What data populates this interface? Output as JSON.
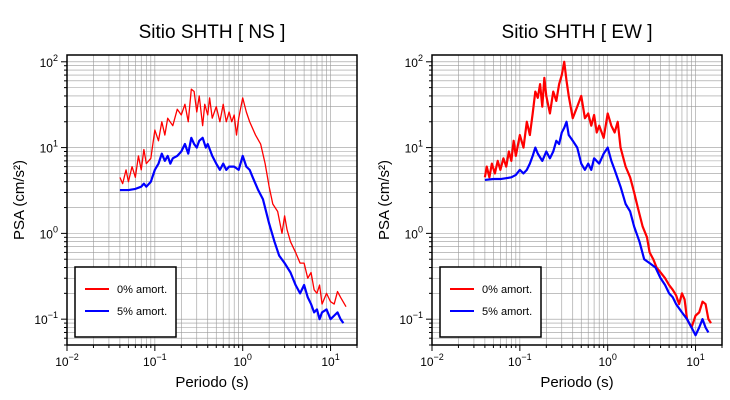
{
  "chart_data": [
    {
      "type": "line",
      "title": "Sitio SHTH [ NS ]",
      "xlabel": "Periodo (s)",
      "ylabel": "PSA (cm/s²)",
      "xscale": "log",
      "yscale": "log",
      "xlim": [
        0.01,
        20
      ],
      "ylim": [
        0.05,
        120
      ],
      "grid": true,
      "legend_position": "bottom-left",
      "x_ticks": [
        {
          "base": "10",
          "exp": "−2"
        },
        {
          "base": "10",
          "exp": "−1"
        },
        {
          "base": "10",
          "exp": "0"
        },
        {
          "base": "10",
          "exp": "1"
        }
      ],
      "y_ticks": [
        {
          "base": "10",
          "exp": "−1"
        },
        {
          "base": "10",
          "exp": "0"
        },
        {
          "base": "10",
          "exp": "1"
        },
        {
          "base": "10",
          "exp": "2"
        }
      ],
      "series": [
        {
          "name": "0% amort.",
          "color": "#ff0000",
          "points": [
            [
              0.04,
              4.5
            ],
            [
              0.043,
              3.8
            ],
            [
              0.047,
              5.5
            ],
            [
              0.05,
              4.0
            ],
            [
              0.055,
              6.0
            ],
            [
              0.06,
              4.5
            ],
            [
              0.065,
              8.0
            ],
            [
              0.07,
              5.5
            ],
            [
              0.075,
              9.5
            ],
            [
              0.08,
              6.5
            ],
            [
              0.09,
              7.5
            ],
            [
              0.1,
              16
            ],
            [
              0.11,
              12
            ],
            [
              0.12,
              20
            ],
            [
              0.13,
              14
            ],
            [
              0.14,
              22
            ],
            [
              0.16,
              18
            ],
            [
              0.18,
              28
            ],
            [
              0.2,
              24
            ],
            [
              0.22,
              32
            ],
            [
              0.24,
              20
            ],
            [
              0.26,
              48
            ],
            [
              0.28,
              45
            ],
            [
              0.3,
              26
            ],
            [
              0.32,
              40
            ],
            [
              0.35,
              18
            ],
            [
              0.37,
              32
            ],
            [
              0.4,
              24
            ],
            [
              0.42,
              38
            ],
            [
              0.45,
              22
            ],
            [
              0.5,
              30
            ],
            [
              0.55,
              20
            ],
            [
              0.6,
              32
            ],
            [
              0.65,
              20
            ],
            [
              0.7,
              26
            ],
            [
              0.75,
              20
            ],
            [
              0.8,
              24
            ],
            [
              0.85,
              14
            ],
            [
              0.9,
              22
            ],
            [
              1.0,
              38
            ],
            [
              1.1,
              26
            ],
            [
              1.2,
              20
            ],
            [
              1.4,
              14
            ],
            [
              1.6,
              11
            ],
            [
              1.8,
              6.5
            ],
            [
              2.0,
              3.5
            ],
            [
              2.2,
              2.2
            ],
            [
              2.5,
              1.8
            ],
            [
              2.8,
              1.0
            ],
            [
              3.0,
              1.6
            ],
            [
              3.2,
              1.1
            ],
            [
              3.5,
              0.8
            ],
            [
              4.0,
              0.6
            ],
            [
              4.5,
              0.45
            ],
            [
              5.0,
              0.45
            ],
            [
              5.5,
              0.3
            ],
            [
              6.0,
              0.35
            ],
            [
              6.5,
              0.22
            ],
            [
              7.0,
              0.2
            ],
            [
              7.5,
              0.25
            ],
            [
              8.0,
              0.15
            ],
            [
              9.0,
              0.2
            ],
            [
              10,
              0.16
            ],
            [
              11,
              0.15
            ],
            [
              12,
              0.21
            ],
            [
              13,
              0.18
            ],
            [
              15,
              0.14
            ]
          ]
        },
        {
          "name": "5% amort.",
          "color": "#0000ff",
          "points": [
            [
              0.04,
              3.2
            ],
            [
              0.05,
              3.2
            ],
            [
              0.06,
              3.3
            ],
            [
              0.07,
              3.5
            ],
            [
              0.075,
              3.8
            ],
            [
              0.08,
              3.5
            ],
            [
              0.09,
              4.0
            ],
            [
              0.1,
              5.5
            ],
            [
              0.11,
              6.5
            ],
            [
              0.12,
              8.5
            ],
            [
              0.13,
              7.0
            ],
            [
              0.14,
              8.0
            ],
            [
              0.15,
              6.5
            ],
            [
              0.16,
              7.5
            ],
            [
              0.18,
              8.0
            ],
            [
              0.2,
              9.0
            ],
            [
              0.22,
              11
            ],
            [
              0.24,
              8.5
            ],
            [
              0.26,
              13
            ],
            [
              0.28,
              11
            ],
            [
              0.3,
              10
            ],
            [
              0.32,
              12
            ],
            [
              0.35,
              13
            ],
            [
              0.38,
              10
            ],
            [
              0.4,
              11
            ],
            [
              0.45,
              8
            ],
            [
              0.5,
              6.5
            ],
            [
              0.55,
              5.5
            ],
            [
              0.6,
              6.5
            ],
            [
              0.65,
              5.5
            ],
            [
              0.7,
              6.0
            ],
            [
              0.8,
              6.0
            ],
            [
              0.9,
              5.5
            ],
            [
              1.0,
              8.0
            ],
            [
              1.1,
              6.0
            ],
            [
              1.2,
              5.5
            ],
            [
              1.3,
              4.5
            ],
            [
              1.5,
              3.2
            ],
            [
              1.7,
              2.5
            ],
            [
              2.0,
              1.3
            ],
            [
              2.3,
              0.8
            ],
            [
              2.6,
              0.55
            ],
            [
              3.0,
              0.45
            ],
            [
              3.5,
              0.35
            ],
            [
              4.0,
              0.25
            ],
            [
              4.5,
              0.2
            ],
            [
              5.0,
              0.25
            ],
            [
              5.5,
              0.18
            ],
            [
              6.0,
              0.15
            ],
            [
              6.5,
              0.12
            ],
            [
              7.0,
              0.13
            ],
            [
              7.5,
              0.1
            ],
            [
              8.0,
              0.12
            ],
            [
              9.0,
              0.13
            ],
            [
              10,
              0.1
            ],
            [
              11,
              0.11
            ],
            [
              12,
              0.12
            ],
            [
              13,
              0.1
            ],
            [
              14,
              0.09
            ]
          ]
        }
      ]
    },
    {
      "type": "line",
      "title": "Sitio SHTH [ EW ]",
      "xlabel": "Periodo (s)",
      "ylabel": "PSA (cm/s²)",
      "xscale": "log",
      "yscale": "log",
      "xlim": [
        0.01,
        20
      ],
      "ylim": [
        0.05,
        120
      ],
      "grid": true,
      "legend_position": "bottom-left",
      "x_ticks": [
        {
          "base": "10",
          "exp": "−2"
        },
        {
          "base": "10",
          "exp": "−1"
        },
        {
          "base": "10",
          "exp": "0"
        },
        {
          "base": "10",
          "exp": "1"
        }
      ],
      "y_ticks": [
        {
          "base": "10",
          "exp": "−1"
        },
        {
          "base": "10",
          "exp": "0"
        },
        {
          "base": "10",
          "exp": "1"
        },
        {
          "base": "10",
          "exp": "2"
        }
      ],
      "series": [
        {
          "name": "0% amort.",
          "color": "#ff0000",
          "points": [
            [
              0.04,
              4.5
            ],
            [
              0.042,
              6.0
            ],
            [
              0.045,
              4.5
            ],
            [
              0.048,
              6.5
            ],
            [
              0.052,
              5.0
            ],
            [
              0.056,
              7.0
            ],
            [
              0.06,
              5.5
            ],
            [
              0.065,
              7.5
            ],
            [
              0.07,
              6.0
            ],
            [
              0.075,
              9.0
            ],
            [
              0.08,
              7.0
            ],
            [
              0.085,
              12
            ],
            [
              0.09,
              8.0
            ],
            [
              0.1,
              14
            ],
            [
              0.11,
              10
            ],
            [
              0.12,
              20
            ],
            [
              0.13,
              14
            ],
            [
              0.14,
              25
            ],
            [
              0.15,
              45
            ],
            [
              0.16,
              38
            ],
            [
              0.17,
              55
            ],
            [
              0.18,
              30
            ],
            [
              0.19,
              65
            ],
            [
              0.2,
              40
            ],
            [
              0.22,
              25
            ],
            [
              0.24,
              45
            ],
            [
              0.26,
              35
            ],
            [
              0.28,
              55
            ],
            [
              0.3,
              70
            ],
            [
              0.32,
              100
            ],
            [
              0.34,
              60
            ],
            [
              0.36,
              40
            ],
            [
              0.4,
              22
            ],
            [
              0.45,
              30
            ],
            [
              0.5,
              40
            ],
            [
              0.55,
              22
            ],
            [
              0.6,
              25
            ],
            [
              0.65,
              18
            ],
            [
              0.7,
              24
            ],
            [
              0.75,
              15
            ],
            [
              0.8,
              18
            ],
            [
              0.9,
              13
            ],
            [
              1.0,
              25
            ],
            [
              1.1,
              18
            ],
            [
              1.2,
              15
            ],
            [
              1.3,
              20
            ],
            [
              1.4,
              10
            ],
            [
              1.6,
              6.0
            ],
            [
              1.8,
              4.5
            ],
            [
              2.0,
              3.0
            ],
            [
              2.2,
              2.0
            ],
            [
              2.5,
              1.2
            ],
            [
              2.8,
              0.9
            ],
            [
              3.0,
              0.6
            ],
            [
              3.3,
              0.5
            ],
            [
              3.6,
              0.4
            ],
            [
              4.0,
              0.35
            ],
            [
              4.5,
              0.3
            ],
            [
              5.0,
              0.25
            ],
            [
              5.5,
              0.22
            ],
            [
              6.0,
              0.19
            ],
            [
              6.5,
              0.15
            ],
            [
              7.0,
              0.2
            ],
            [
              7.5,
              0.17
            ],
            [
              8.0,
              0.1
            ],
            [
              9.0,
              0.08
            ],
            [
              10,
              0.11
            ],
            [
              11,
              0.12
            ],
            [
              12,
              0.16
            ],
            [
              13,
              0.15
            ],
            [
              14,
              0.1
            ],
            [
              15,
              0.09
            ]
          ]
        },
        {
          "name": "5% amort.",
          "color": "#0000ff",
          "points": [
            [
              0.04,
              4.2
            ],
            [
              0.05,
              4.3
            ],
            [
              0.06,
              4.3
            ],
            [
              0.07,
              4.4
            ],
            [
              0.08,
              4.5
            ],
            [
              0.09,
              4.8
            ],
            [
              0.1,
              5.5
            ],
            [
              0.11,
              5.0
            ],
            [
              0.12,
              5.5
            ],
            [
              0.13,
              6.5
            ],
            [
              0.14,
              8.0
            ],
            [
              0.15,
              10
            ],
            [
              0.16,
              8.5
            ],
            [
              0.18,
              7.0
            ],
            [
              0.2,
              9.0
            ],
            [
              0.22,
              7.5
            ],
            [
              0.24,
              9.0
            ],
            [
              0.26,
              12
            ],
            [
              0.28,
              11
            ],
            [
              0.3,
              15
            ],
            [
              0.32,
              17
            ],
            [
              0.34,
              20
            ],
            [
              0.36,
              14
            ],
            [
              0.4,
              12
            ],
            [
              0.45,
              10
            ],
            [
              0.5,
              6.5
            ],
            [
              0.55,
              5.5
            ],
            [
              0.6,
              6.5
            ],
            [
              0.65,
              5.5
            ],
            [
              0.7,
              7.5
            ],
            [
              0.8,
              6.5
            ],
            [
              0.9,
              8.5
            ],
            [
              1.0,
              10
            ],
            [
              1.1,
              7.0
            ],
            [
              1.2,
              5.5
            ],
            [
              1.4,
              3.5
            ],
            [
              1.6,
              2.2
            ],
            [
              1.8,
              1.8
            ],
            [
              2.0,
              1.2
            ],
            [
              2.3,
              0.8
            ],
            [
              2.6,
              0.5
            ],
            [
              3.0,
              0.45
            ],
            [
              3.5,
              0.4
            ],
            [
              4.0,
              0.3
            ],
            [
              4.5,
              0.25
            ],
            [
              5.0,
              0.2
            ],
            [
              5.5,
              0.18
            ],
            [
              6.0,
              0.15
            ],
            [
              7.0,
              0.12
            ],
            [
              8.0,
              0.1
            ],
            [
              9.0,
              0.08
            ],
            [
              10,
              0.065
            ],
            [
              11,
              0.08
            ],
            [
              12,
              0.1
            ],
            [
              13,
              0.08
            ],
            [
              14,
              0.07
            ]
          ]
        }
      ]
    }
  ]
}
